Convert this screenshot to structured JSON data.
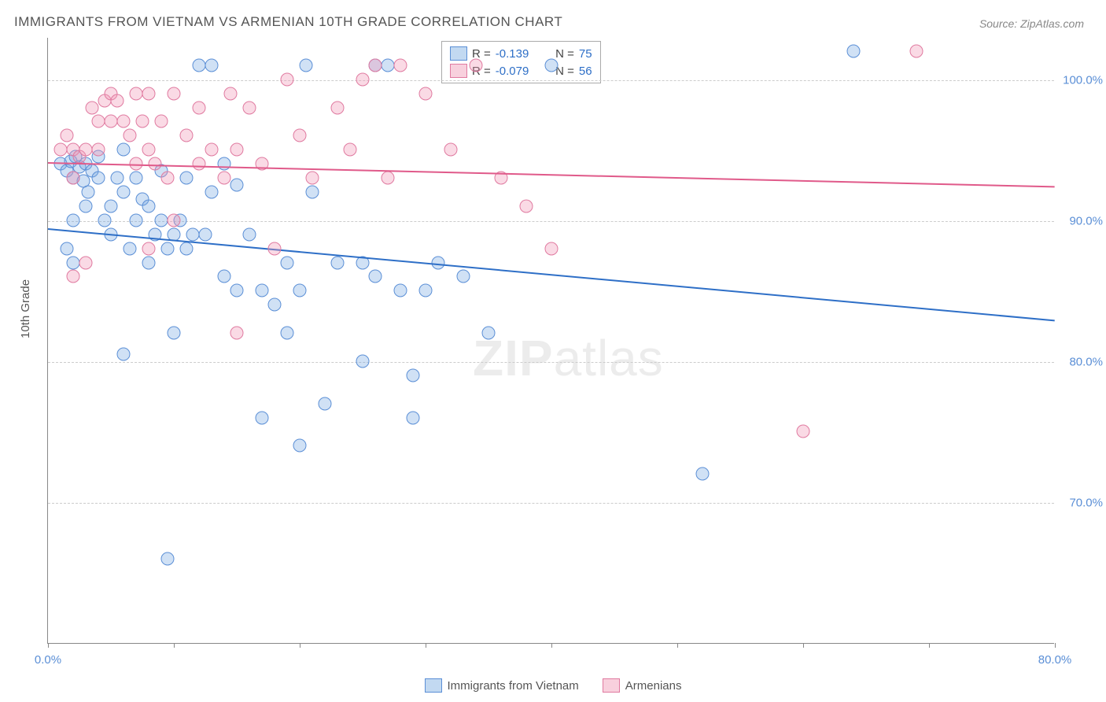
{
  "title": "IMMIGRANTS FROM VIETNAM VS ARMENIAN 10TH GRADE CORRELATION CHART",
  "source": "Source: ZipAtlas.com",
  "watermark_bold": "ZIP",
  "watermark_light": "atlas",
  "ylabel": "10th Grade",
  "chart": {
    "type": "scatter",
    "xlim": [
      0,
      80
    ],
    "ylim": [
      60,
      103
    ],
    "xticks": [
      0,
      10,
      20,
      30,
      40,
      50,
      60,
      70,
      80
    ],
    "xtick_labels": {
      "0": "0.0%",
      "80": "80.0%"
    },
    "yticks": [
      70,
      80,
      90,
      100
    ],
    "ytick_labels": [
      "70.0%",
      "80.0%",
      "90.0%",
      "100.0%"
    ],
    "grid_color": "#cccccc",
    "background_color": "#ffffff",
    "series": [
      {
        "name": "Immigrants from Vietnam",
        "color_fill": "rgba(120,170,225,0.35)",
        "color_stroke": "#5b8fd6",
        "R": "-0.139",
        "N": "75",
        "trend": {
          "x1": 0,
          "y1": 89.5,
          "x2": 80,
          "y2": 83.0
        },
        "points": [
          [
            1,
            94
          ],
          [
            1.5,
            93.5
          ],
          [
            1.8,
            94.2
          ],
          [
            2,
            93
          ],
          [
            2.2,
            94.5
          ],
          [
            2.5,
            93.8
          ],
          [
            2,
            90
          ],
          [
            3,
            94
          ],
          [
            3,
            91
          ],
          [
            3.5,
            93.5
          ],
          [
            1.5,
            88
          ],
          [
            2,
            87
          ],
          [
            4,
            93
          ],
          [
            4,
            94.5
          ],
          [
            4.5,
            90
          ],
          [
            5,
            91
          ],
          [
            5,
            89
          ],
          [
            5.5,
            93
          ],
          [
            6,
            92
          ],
          [
            6,
            95
          ],
          [
            6.5,
            88
          ],
          [
            7,
            90
          ],
          [
            7,
            93
          ],
          [
            7.5,
            91.5
          ],
          [
            8,
            91
          ],
          [
            8,
            87
          ],
          [
            8.5,
            89
          ],
          [
            9,
            90
          ],
          [
            9,
            93.5
          ],
          [
            9.5,
            88
          ],
          [
            10,
            89
          ],
          [
            10,
            82
          ],
          [
            10.5,
            90
          ],
          [
            11,
            88
          ],
          [
            11,
            93
          ],
          [
            11.5,
            89
          ],
          [
            12,
            101
          ],
          [
            12.5,
            89
          ],
          [
            13,
            92
          ],
          [
            13,
            101
          ],
          [
            6,
            80.5
          ],
          [
            14,
            94
          ],
          [
            14,
            86
          ],
          [
            15,
            92.5
          ],
          [
            15,
            85
          ],
          [
            16,
            89
          ],
          [
            17,
            76
          ],
          [
            17,
            85
          ],
          [
            18,
            84
          ],
          [
            19,
            82
          ],
          [
            19,
            87
          ],
          [
            20,
            74
          ],
          [
            20,
            85
          ],
          [
            20.5,
            101
          ],
          [
            21,
            92
          ],
          [
            22,
            77
          ],
          [
            23,
            87
          ],
          [
            25,
            87
          ],
          [
            25,
            80
          ],
          [
            26,
            101
          ],
          [
            26,
            86
          ],
          [
            27,
            101
          ],
          [
            28,
            85
          ],
          [
            29,
            79
          ],
          [
            29,
            76
          ],
          [
            30,
            85
          ],
          [
            31,
            87
          ],
          [
            33,
            86
          ],
          [
            35,
            82
          ],
          [
            40,
            101
          ],
          [
            52,
            72
          ],
          [
            9.5,
            66
          ],
          [
            64,
            102
          ],
          [
            2.8,
            92.8
          ],
          [
            3.2,
            92
          ]
        ]
      },
      {
        "name": "Armenians",
        "color_fill": "rgba(240,150,180,0.35)",
        "color_stroke": "#e07aa0",
        "R": "-0.079",
        "N": "56",
        "trend": {
          "x1": 0,
          "y1": 94.2,
          "x2": 80,
          "y2": 92.5
        },
        "points": [
          [
            1,
            95
          ],
          [
            1.5,
            96
          ],
          [
            2,
            95
          ],
          [
            2,
            93
          ],
          [
            2.5,
            94.5
          ],
          [
            3,
            87
          ],
          [
            3,
            95
          ],
          [
            3.5,
            98
          ],
          [
            4,
            97
          ],
          [
            4,
            95
          ],
          [
            4.5,
            98.5
          ],
          [
            5,
            97
          ],
          [
            5,
            99
          ],
          [
            5.5,
            98.5
          ],
          [
            6,
            97
          ],
          [
            6.5,
            96
          ],
          [
            7,
            94
          ],
          [
            7,
            99
          ],
          [
            7.5,
            97
          ],
          [
            8,
            95
          ],
          [
            8,
            99
          ],
          [
            8.5,
            94
          ],
          [
            9,
            97
          ],
          [
            9.5,
            93
          ],
          [
            10,
            99
          ],
          [
            10,
            90
          ],
          [
            11,
            96
          ],
          [
            12,
            94
          ],
          [
            12,
            98
          ],
          [
            13,
            95
          ],
          [
            14,
            93
          ],
          [
            14.5,
            99
          ],
          [
            15,
            95
          ],
          [
            16,
            98
          ],
          [
            17,
            94
          ],
          [
            18,
            88
          ],
          [
            19,
            100
          ],
          [
            20,
            96
          ],
          [
            21,
            93
          ],
          [
            23,
            98
          ],
          [
            24,
            95
          ],
          [
            25,
            100
          ],
          [
            26,
            101
          ],
          [
            27,
            93
          ],
          [
            28,
            101
          ],
          [
            30,
            99
          ],
          [
            32,
            95
          ],
          [
            34,
            101
          ],
          [
            36,
            93
          ],
          [
            38,
            91
          ],
          [
            40,
            88
          ],
          [
            2,
            86
          ],
          [
            60,
            75
          ],
          [
            69,
            102
          ],
          [
            15,
            82
          ],
          [
            8,
            88
          ]
        ]
      }
    ],
    "legend_top": {
      "R_label": "R =",
      "N_label": "N ="
    },
    "legend_bottom": [
      {
        "swatch": "blue",
        "label": "Immigrants from Vietnam"
      },
      {
        "swatch": "pink",
        "label": "Armenians"
      }
    ]
  }
}
